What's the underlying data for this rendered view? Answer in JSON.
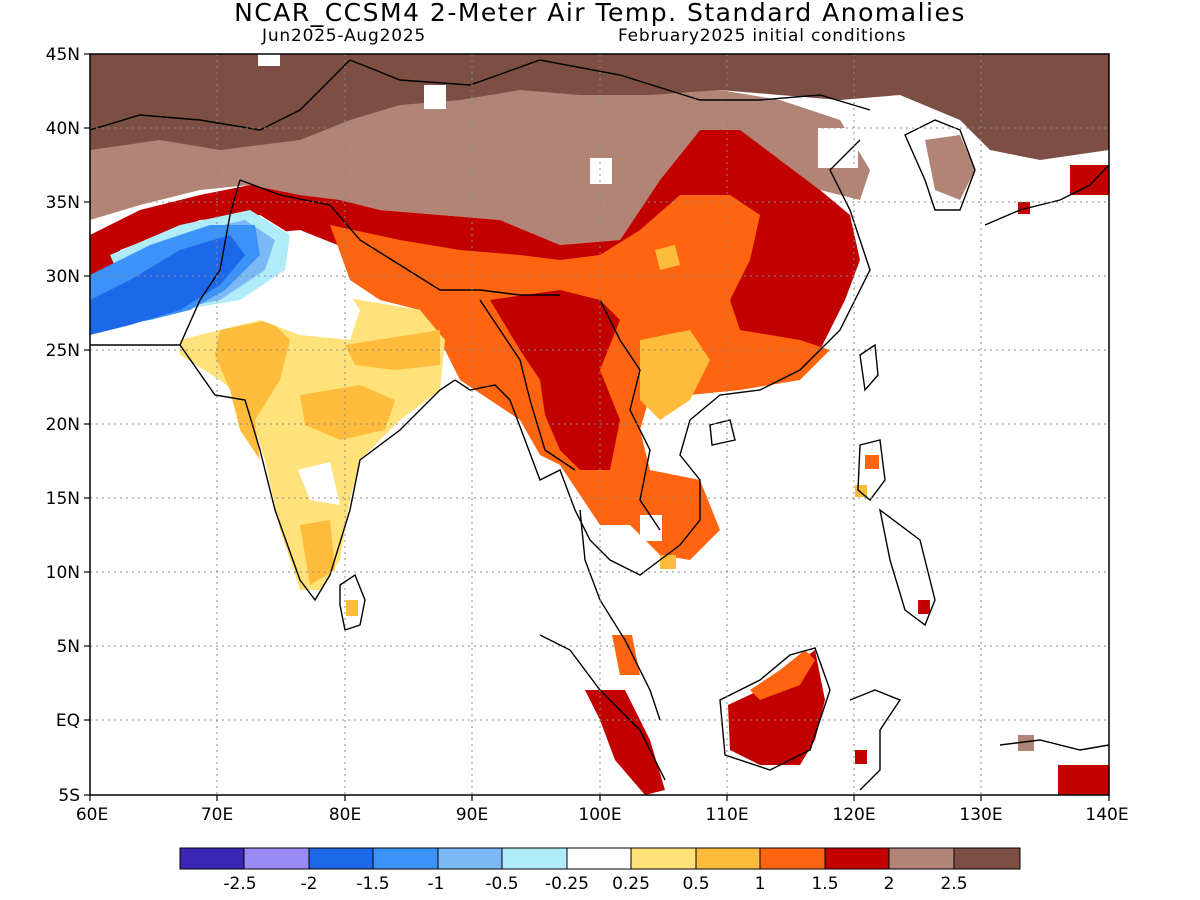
{
  "header": {
    "title": "NCAR_CCSM4 2-Meter Air Temp. Standard Anomalies",
    "period": "Jun2025-Aug2025",
    "init": "February2025 initial conditions"
  },
  "map": {
    "lat_labels": [
      "45N",
      "40N",
      "35N",
      "30N",
      "25N",
      "20N",
      "15N",
      "10N",
      "5N",
      "EQ",
      "5S"
    ],
    "lon_labels": [
      "60E",
      "70E",
      "80E",
      "90E",
      "100E",
      "110E",
      "120E",
      "130E",
      "140E"
    ],
    "extent": {
      "lon": [
        60,
        140
      ],
      "lat": [
        -5,
        45
      ]
    },
    "grid": "dotted"
  },
  "legend": {
    "colors": [
      "#3a26b4",
      "#9a8af4",
      "#1c68e8",
      "#3c92f6",
      "#7ab8f6",
      "#b0ecf8",
      "#ffffff",
      "#ffe27a",
      "#ffbc3c",
      "#ff6410",
      "#c20000",
      "#b28476",
      "#7c4e44"
    ],
    "labels": [
      "-2.5",
      "-2",
      "-1.5",
      "-1",
      "-0.5",
      "-0.25",
      "0.25",
      "0.5",
      "1",
      "1.5",
      "2",
      "2.5"
    ]
  },
  "palette": {
    "dark_brown": "#7c4e44",
    "light_brown": "#b28476",
    "dark_red": "#c20000",
    "orange": "#ff6410",
    "light_orange": "#ffbc3c",
    "yellow": "#ffe27a",
    "white": "#ffffff",
    "cyan": "#b0ecf8",
    "light_blue": "#7ab8f6",
    "mid_blue": "#3c92f6",
    "blue": "#1c68e8"
  }
}
